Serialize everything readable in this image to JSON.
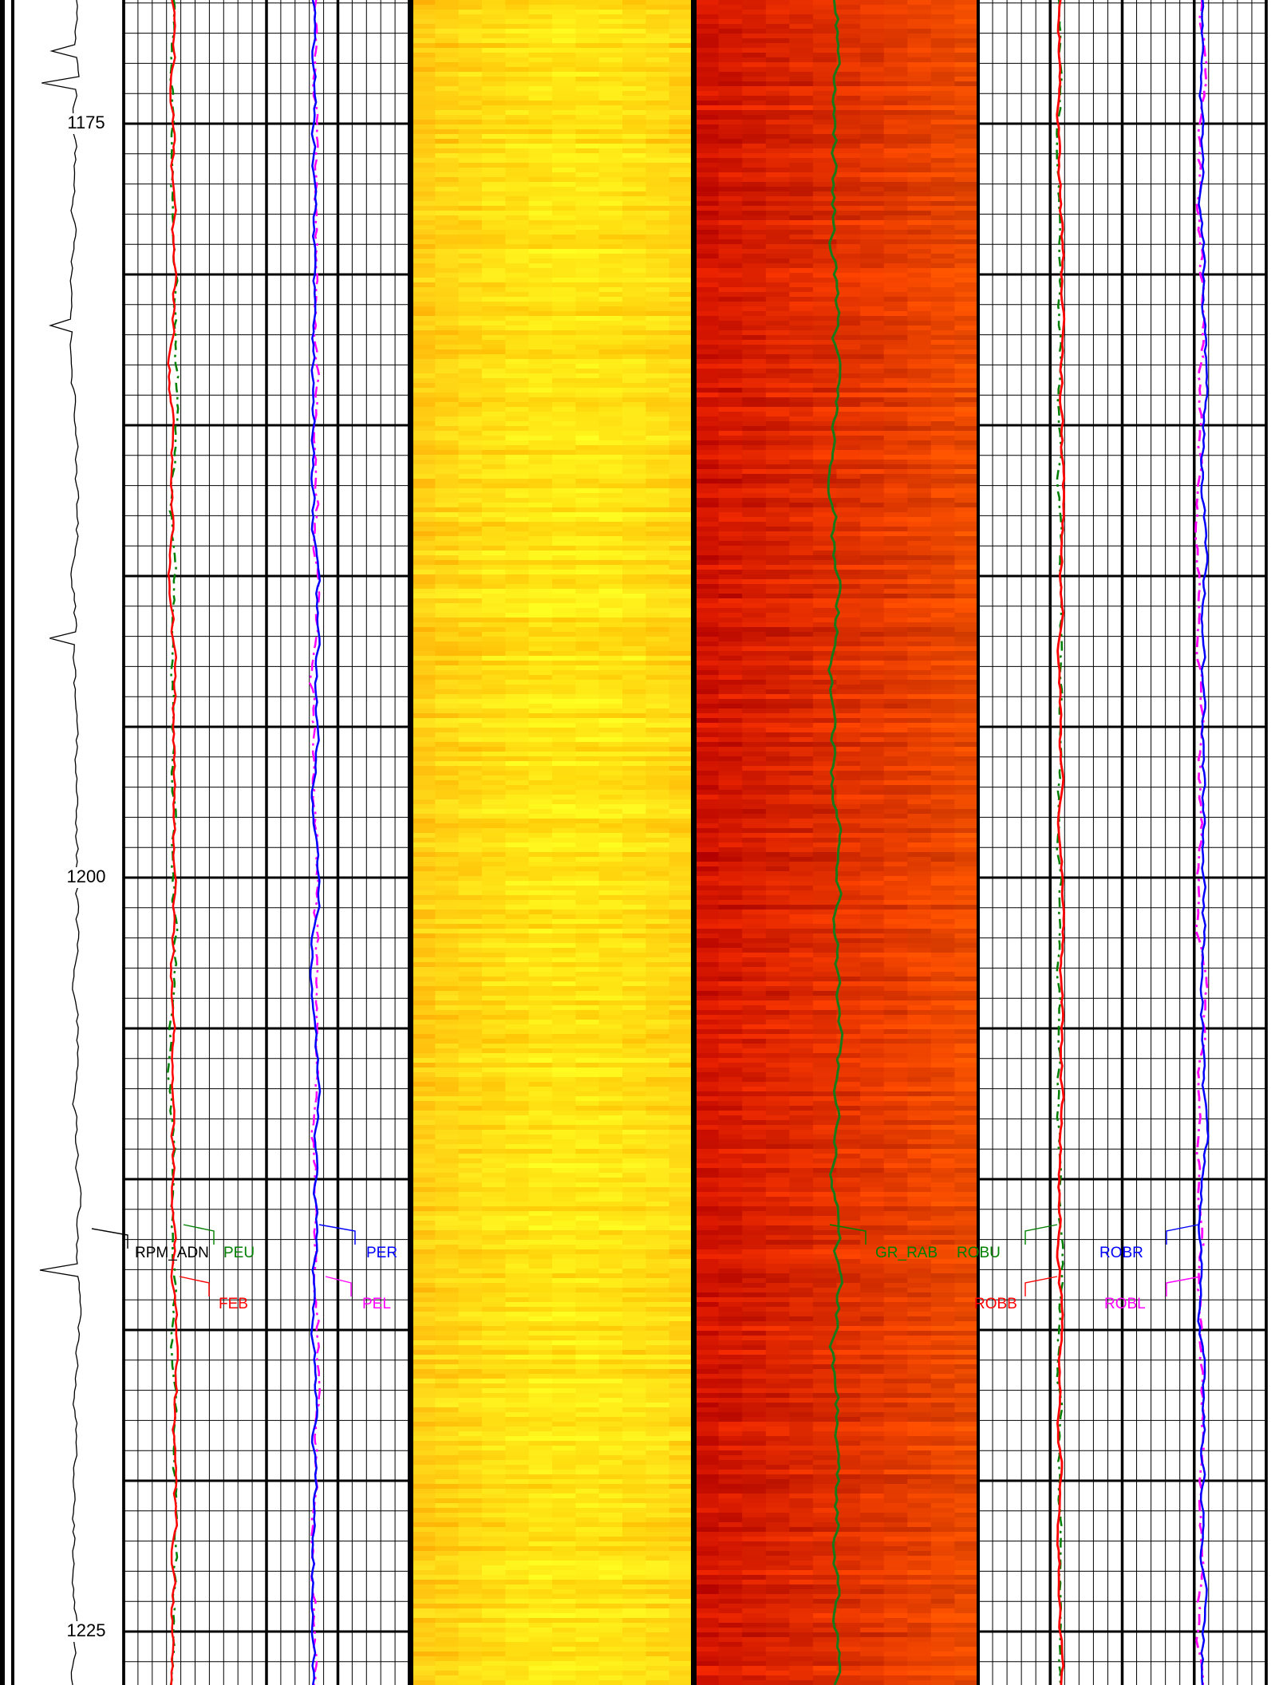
{
  "depth_labels": [
    "1175",
    "1200",
    "1225"
  ],
  "curve_labels": [
    {
      "text": "RPM_ADN",
      "color": "#000000"
    },
    {
      "text": "PEU",
      "color": "#008000"
    },
    {
      "text": "PER",
      "color": "#0000ff"
    },
    {
      "text": "FEB",
      "color": "#ff0000"
    },
    {
      "text": "PEL",
      "color": "#ff00ff"
    },
    {
      "text": "GR_RAB",
      "color": "#008000"
    },
    {
      "text": "ROBU",
      "color": "#008000"
    },
    {
      "text": "ROBB",
      "color": "#ff0000"
    },
    {
      "text": "ROBR",
      "color": "#0000ff"
    },
    {
      "text": "ROBL",
      "color": "#ff00ff"
    }
  ]
}
